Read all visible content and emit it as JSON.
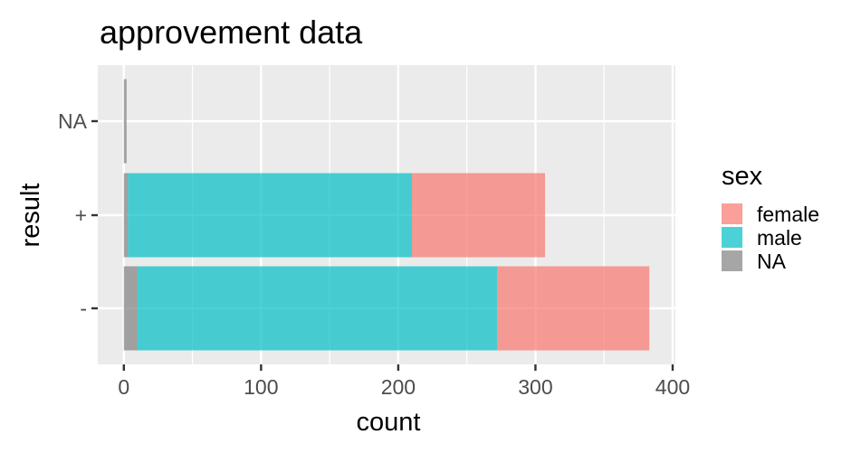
{
  "chart_data": {
    "type": "bar",
    "orientation": "horizontal",
    "stacked": true,
    "title": "approvement data",
    "xlabel": "count",
    "ylabel": "result",
    "categories": [
      "-",
      "+",
      "NA"
    ],
    "series": [
      {
        "name": "female",
        "values": [
          111,
          97,
          0
        ]
      },
      {
        "name": "male",
        "values": [
          262,
          207,
          0
        ]
      },
      {
        "name": "NA",
        "values": [
          10,
          3,
          2
        ]
      }
    ],
    "xlim": [
      -19,
      402
    ],
    "xticks": [
      0,
      100,
      200,
      300,
      400
    ],
    "grid": true,
    "legend": {
      "title": "sex",
      "position": "right",
      "entries": [
        "female",
        "male",
        "NA"
      ]
    },
    "colors": {
      "female": "#F8766D",
      "male": "#00BFC4",
      "NA": "#808080",
      "panel": "#EBEBEB",
      "grid": "#FFFFFF"
    }
  }
}
